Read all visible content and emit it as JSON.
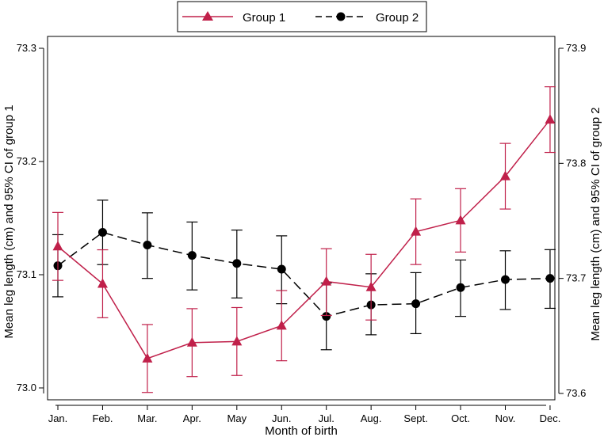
{
  "chart_data": {
    "type": "line",
    "title": "",
    "xlabel": "Month of birth",
    "ylabel_left": "Mean leg length (cm) and 95% CI of group 1",
    "ylabel_right": "Mean leg length (cm) and 95% CI of group 2",
    "categories": [
      "Jan.",
      "Feb.",
      "Mar.",
      "Apr.",
      "May",
      "Jun.",
      "Jul.",
      "Aug.",
      "Sept.",
      "Oct.",
      "Nov.",
      "Dec."
    ],
    "ylim_left": [
      73.0,
      73.3
    ],
    "ylim_right": [
      73.6,
      73.9
    ],
    "yticks_left": [
      "73.0",
      "73.1",
      "73.2",
      "73.3"
    ],
    "yticks_right": [
      "73.6",
      "73.7",
      "73.8",
      "73.9"
    ],
    "legend_position": "top",
    "grid": false,
    "series": [
      {
        "name": "Group 1",
        "axis": "left",
        "color": "#c0204a",
        "marker": "triangle",
        "line_style": "solid",
        "values": [
          73.125,
          73.092,
          73.026,
          73.04,
          73.041,
          73.055,
          73.094,
          73.089,
          73.138,
          73.148,
          73.187,
          73.237
        ],
        "ci_low": [
          73.095,
          73.062,
          72.996,
          73.01,
          73.011,
          73.024,
          73.064,
          73.06,
          73.109,
          73.12,
          73.158,
          73.208
        ],
        "ci_high": [
          73.155,
          73.122,
          73.056,
          73.07,
          73.071,
          73.086,
          73.123,
          73.118,
          73.167,
          73.176,
          73.216,
          73.266
        ]
      },
      {
        "name": "Group 2",
        "axis": "right",
        "color": "#000000",
        "marker": "circle",
        "line_style": "dashed",
        "values": [
          73.711,
          73.74,
          73.729,
          73.72,
          73.713,
          73.708,
          73.667,
          73.677,
          73.678,
          73.692,
          73.699,
          73.7
        ],
        "ci_low": [
          73.684,
          73.712,
          73.7,
          73.69,
          73.683,
          73.678,
          73.638,
          73.651,
          73.652,
          73.667,
          73.673,
          73.674
        ],
        "ci_high": [
          73.738,
          73.768,
          73.757,
          73.749,
          73.742,
          73.737,
          73.696,
          73.704,
          73.705,
          73.716,
          73.724,
          73.725
        ]
      }
    ]
  }
}
